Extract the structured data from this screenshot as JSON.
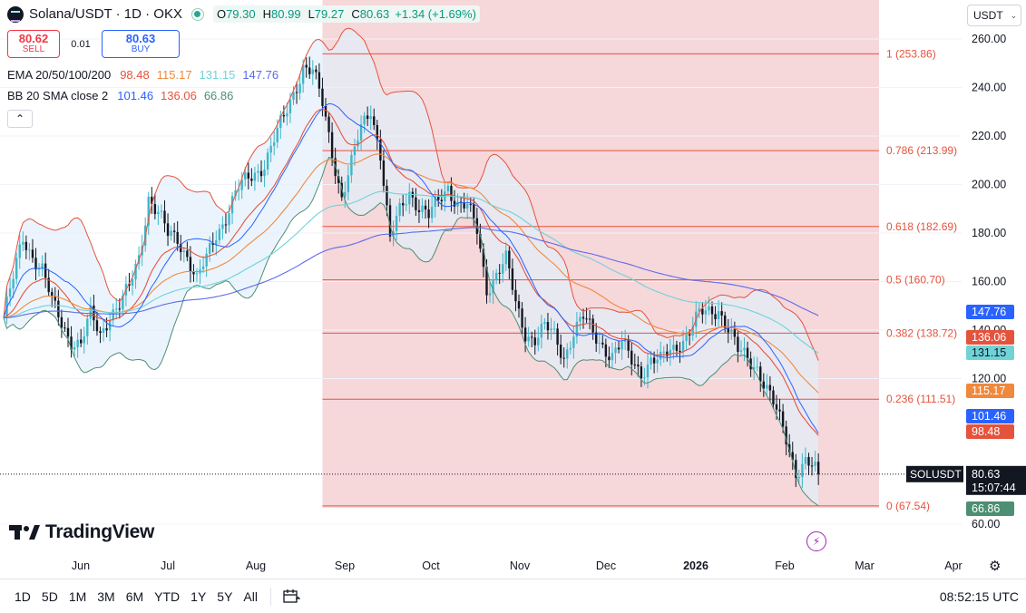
{
  "legend": {
    "symbol": "Solana/USDT · 1D · OKX",
    "o_label": "O",
    "o": "79.30",
    "h_label": "H",
    "h": "80.99",
    "l_label": "L",
    "l": "79.27",
    "c_label": "C",
    "c": "80.63",
    "change": "+1.34 (+1.69%)"
  },
  "trade": {
    "sell_price": "80.62",
    "sell_label": "SELL",
    "spread": "0.01",
    "buy_price": "80.63",
    "buy_label": "BUY"
  },
  "ema": {
    "name": "EMA 20/50/100/200",
    "values": [
      "98.48",
      "115.17",
      "131.15",
      "147.76"
    ],
    "colors": [
      "#e5533d",
      "#f0893c",
      "#6fd3d8",
      "#5b6bea"
    ]
  },
  "bb": {
    "name": "BB 20 SMA close 2",
    "values": [
      "101.46",
      "136.06",
      "66.86"
    ],
    "colors": [
      "#2962ff",
      "#e5533d",
      "#4c8f73"
    ]
  },
  "currency": "USDT",
  "logo": "TradingView",
  "timeframes": [
    "1D",
    "5D",
    "1M",
    "3M",
    "6M",
    "YTD",
    "1Y",
    "5Y",
    "All"
  ],
  "clock": "08:52:15 UTC",
  "chart_data": {
    "type": "candlestick",
    "symbol": "SOLUSDT",
    "last_price": 80.63,
    "countdown": "15:07:44",
    "ylim": [
      55,
      266
    ],
    "y_ticks": [
      60,
      120,
      140,
      160,
      180,
      200,
      220,
      240,
      260
    ],
    "x_ticks": [
      {
        "label": "Jun",
        "bold": false
      },
      {
        "label": "Jul",
        "bold": false
      },
      {
        "label": "Aug",
        "bold": false
      },
      {
        "label": "Sep",
        "bold": false
      },
      {
        "label": "Oct",
        "bold": false
      },
      {
        "label": "Nov",
        "bold": false
      },
      {
        "label": "Dec",
        "bold": false
      },
      {
        "label": "2026",
        "bold": true
      },
      {
        "label": "Feb",
        "bold": false
      },
      {
        "label": "Mar",
        "bold": false
      },
      {
        "label": "Apr",
        "bold": false
      }
    ],
    "fib_levels": [
      {
        "ratio": "1",
        "price": 253.86
      },
      {
        "ratio": "0.786",
        "price": 213.99
      },
      {
        "ratio": "0.618",
        "price": 182.69
      },
      {
        "ratio": "0.5",
        "price": 160.7
      },
      {
        "ratio": "0.382",
        "price": 138.72
      },
      {
        "ratio": "0.236",
        "price": 111.51
      },
      {
        "ratio": "0",
        "price": 67.54
      }
    ],
    "price_badges": [
      {
        "value": "147.76",
        "color": "#2962ff"
      },
      {
        "value": "136.06",
        "color": "#e5533d"
      },
      {
        "value": "131.15",
        "color": "#6fd3d8"
      },
      {
        "value": "115.17",
        "color": "#f0893c"
      },
      {
        "value": "101.46",
        "color": "#2962ff"
      },
      {
        "value": "98.48",
        "color": "#e5533d"
      },
      {
        "value": "66.86",
        "color": "#4c8f73"
      }
    ],
    "close_path": [
      [
        0,
        145
      ],
      [
        3,
        160
      ],
      [
        6,
        178
      ],
      [
        9,
        172
      ],
      [
        12,
        165
      ],
      [
        15,
        150
      ],
      [
        18,
        143
      ],
      [
        21,
        137
      ],
      [
        24,
        134
      ],
      [
        27,
        145
      ],
      [
        30,
        138
      ],
      [
        33,
        148
      ],
      [
        36,
        150
      ],
      [
        39,
        156
      ],
      [
        42,
        170
      ],
      [
        45,
        196
      ],
      [
        48,
        188
      ],
      [
        51,
        178
      ],
      [
        54,
        178
      ],
      [
        57,
        172
      ],
      [
        60,
        160
      ],
      [
        63,
        168
      ],
      [
        66,
        180
      ],
      [
        69,
        188
      ],
      [
        72,
        196
      ],
      [
        75,
        200
      ],
      [
        78,
        205
      ],
      [
        81,
        210
      ],
      [
        84,
        218
      ],
      [
        87,
        226
      ],
      [
        90,
        238
      ],
      [
        93,
        250
      ],
      [
        96,
        246
      ],
      [
        99,
        232
      ],
      [
        102,
        214
      ],
      [
        105,
        196
      ],
      [
        108,
        208
      ],
      [
        111,
        222
      ],
      [
        114,
        232
      ],
      [
        117,
        214
      ],
      [
        120,
        176
      ],
      [
        123,
        188
      ],
      [
        126,
        198
      ],
      [
        129,
        192
      ],
      [
        132,
        186
      ],
      [
        135,
        192
      ],
      [
        138,
        200
      ],
      [
        141,
        193
      ],
      [
        144,
        190
      ],
      [
        147,
        180
      ],
      [
        150,
        158
      ],
      [
        153,
        164
      ],
      [
        156,
        168
      ],
      [
        159,
        150
      ],
      [
        162,
        140
      ],
      [
        165,
        137
      ],
      [
        168,
        140
      ],
      [
        171,
        137
      ],
      [
        174,
        130
      ],
      [
        177,
        140
      ],
      [
        180,
        144
      ],
      [
        183,
        138
      ],
      [
        186,
        135
      ],
      [
        189,
        130
      ],
      [
        192,
        133
      ],
      [
        195,
        127
      ],
      [
        198,
        124
      ],
      [
        201,
        128
      ],
      [
        204,
        126
      ],
      [
        207,
        131
      ],
      [
        210,
        136
      ],
      [
        213,
        140
      ],
      [
        216,
        145
      ],
      [
        219,
        147
      ],
      [
        222,
        150
      ],
      [
        225,
        141
      ],
      [
        228,
        130
      ],
      [
        231,
        128
      ],
      [
        234,
        126
      ],
      [
        237,
        116
      ],
      [
        240,
        105
      ],
      [
        243,
        95
      ],
      [
        246,
        83
      ],
      [
        249,
        86
      ],
      [
        252,
        80.63
      ]
    ],
    "fib_zone_start": 99
  }
}
